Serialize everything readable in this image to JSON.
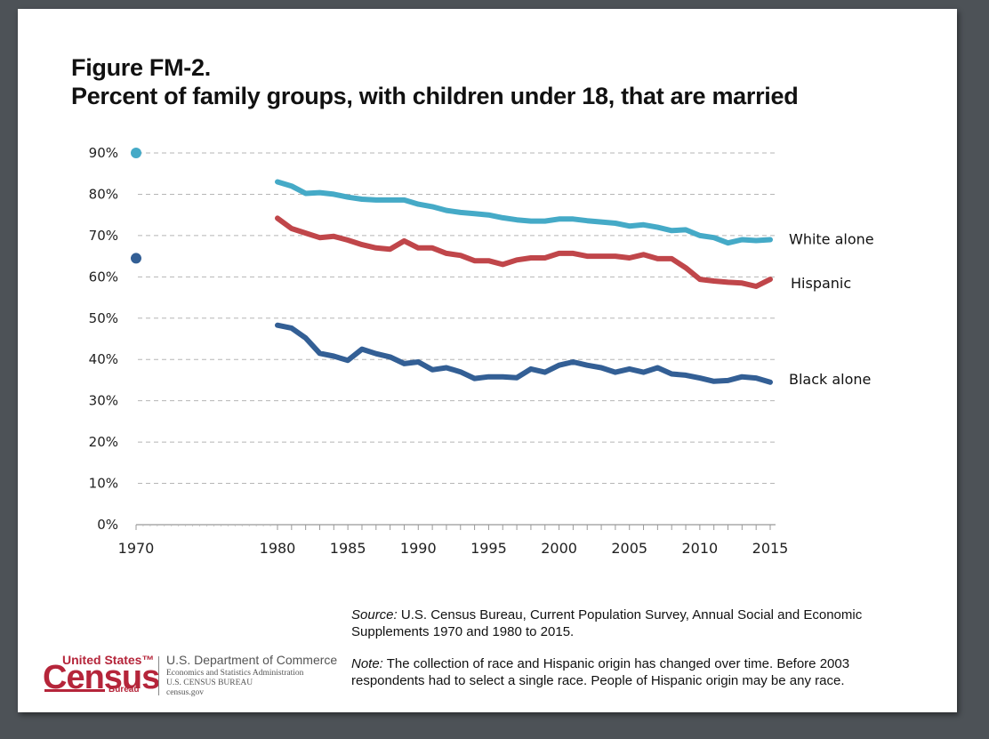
{
  "figure": {
    "label": "Figure FM-2.",
    "title": "Percent of family groups, with children under 18, that are married"
  },
  "colors": {
    "white_alone": "#45aac7",
    "hispanic": "#c0464a",
    "black_alone": "#335f95",
    "grid": "#b5b5b5",
    "census_red": "#b5253a"
  },
  "chart_data": {
    "type": "line",
    "title": "Percent of family groups, with children under 18, that are married",
    "xlabel": "",
    "ylabel": "",
    "ylim": [
      0,
      90
    ],
    "xlim": [
      1970,
      2015
    ],
    "grid": true,
    "legend": "inline-right",
    "y_ticks": [
      {
        "value": 90,
        "label": "90%"
      },
      {
        "value": 80,
        "label": "80%"
      },
      {
        "value": 70,
        "label": "70%"
      },
      {
        "value": 60,
        "label": "60%"
      },
      {
        "value": 50,
        "label": "50%"
      },
      {
        "value": 40,
        "label": "40%"
      },
      {
        "value": 30,
        "label": "30%"
      },
      {
        "value": 20,
        "label": "20%"
      },
      {
        "value": 10,
        "label": "10%"
      },
      {
        "value": 0,
        "label": "0%"
      }
    ],
    "x_tick_labels": [
      {
        "value": 1970,
        "label": "1970"
      },
      {
        "value": 1980,
        "label": "1980"
      },
      {
        "value": 1985,
        "label": "1985"
      },
      {
        "value": 1990,
        "label": "1990"
      },
      {
        "value": 1995,
        "label": "1995"
      },
      {
        "value": 2000,
        "label": "2000"
      },
      {
        "value": 2005,
        "label": "2005"
      },
      {
        "value": 2010,
        "label": "2010"
      },
      {
        "value": 2015,
        "label": "2015"
      }
    ],
    "x_minor_ticks": [
      1970,
      1980,
      1981,
      1982,
      1983,
      1984,
      1985,
      1986,
      1987,
      1988,
      1989,
      1990,
      1991,
      1992,
      1993,
      1994,
      1995,
      1996,
      1997,
      1998,
      1999,
      2000,
      2001,
      2002,
      2003,
      2004,
      2005,
      2006,
      2007,
      2008,
      2009,
      2010,
      2011,
      2012,
      2013,
      2014,
      2015
    ],
    "x": [
      1980,
      1981,
      1982,
      1983,
      1984,
      1985,
      1986,
      1987,
      1988,
      1989,
      1990,
      1991,
      1992,
      1993,
      1994,
      1995,
      1996,
      1997,
      1998,
      1999,
      2000,
      2001,
      2002,
      2003,
      2004,
      2005,
      2006,
      2007,
      2008,
      2009,
      2010,
      2011,
      2012,
      2013,
      2014,
      2015
    ],
    "series": [
      {
        "name": "White alone",
        "key": "white_alone",
        "point_1970": 90,
        "values": [
          83,
          82,
          80.2,
          80.4,
          80,
          79.3,
          78.8,
          78.6,
          78.6,
          78.6,
          77.6,
          77,
          76.1,
          75.6,
          75.3,
          75,
          74.3,
          73.8,
          73.5,
          73.5,
          74,
          74,
          73.6,
          73.3,
          73,
          72.3,
          72.6,
          72,
          71.2,
          71.4,
          70,
          69.5,
          68.2,
          69,
          68.8,
          69
        ]
      },
      {
        "name": "Hispanic",
        "key": "hispanic",
        "point_1970": null,
        "values": [
          74.2,
          71.7,
          70.6,
          69.5,
          69.8,
          68.9,
          67.8,
          67,
          66.7,
          68.7,
          67,
          67,
          65.7,
          65.2,
          63.9,
          63.9,
          63,
          64.1,
          64.6,
          64.6,
          65.7,
          65.7,
          65,
          65,
          65,
          64.6,
          65.4,
          64.4,
          64.4,
          62.2,
          59.4,
          59,
          58.7,
          58.5,
          57.7,
          59.4
        ]
      },
      {
        "name": "Black alone",
        "key": "black_alone",
        "point_1970": 64.5,
        "values": [
          48.3,
          47.6,
          45.2,
          41.5,
          40.8,
          39.8,
          42.5,
          41.4,
          40.6,
          39,
          39.4,
          37.5,
          38,
          37,
          35.4,
          35.8,
          35.8,
          35.6,
          37.7,
          36.9,
          38.6,
          39.4,
          38.6,
          38,
          36.9,
          37.7,
          36.9,
          38,
          36.5,
          36.2,
          35.5,
          34.7,
          34.9,
          35.8,
          35.5,
          34.5
        ]
      }
    ]
  },
  "notes": {
    "source_label": "Source:",
    "source_text": " U.S. Census Bureau, Current Population Survey, Annual Social and Economic Supplements 1970 and 1980 to 2015.",
    "note_label": "Note:",
    "note_text": " The collection of race and Hispanic origin has changed over time. Before 2003 respondents had to select a single race. People of Hispanic origin may be any race."
  },
  "logo": {
    "united_states": "United States™",
    "census": "Census",
    "bureau": "Bureau",
    "department": "U.S. Department of Commerce",
    "administration": "Economics and Statistics Administration",
    "census_bureau": "U.S. CENSUS BUREAU",
    "website": "census.gov"
  }
}
